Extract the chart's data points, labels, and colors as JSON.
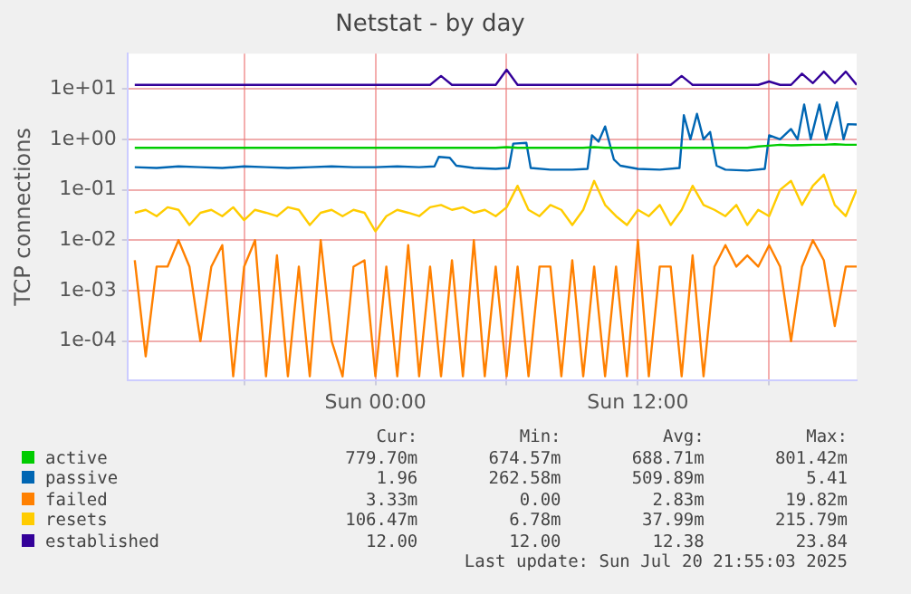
{
  "chart_data": {
    "type": "line",
    "title": "Netstat - by day",
    "ylabel": "TCP connections",
    "log": "y",
    "grid": true,
    "legend": "bottom",
    "x": [
      "2025-07-19T13:00",
      "2025-07-19T13:30",
      "2025-07-19T14:00",
      "2025-07-19T14:30",
      "2025-07-19T15:00",
      "2025-07-19T15:30",
      "2025-07-19T16:00",
      "2025-07-19T16:30",
      "2025-07-19T17:00",
      "2025-07-19T17:30",
      "2025-07-19T18:00",
      "2025-07-19T18:30",
      "2025-07-19T19:00",
      "2025-07-19T19:30",
      "2025-07-19T20:00",
      "2025-07-19T20:30",
      "2025-07-19T21:00",
      "2025-07-19T21:30",
      "2025-07-19T22:00",
      "2025-07-19T22:30",
      "2025-07-19T23:00",
      "2025-07-19T23:30",
      "2025-07-20T00:00",
      "2025-07-20T00:30",
      "2025-07-20T01:00",
      "2025-07-20T01:30",
      "2025-07-20T02:00",
      "2025-07-20T02:30",
      "2025-07-20T03:00",
      "2025-07-20T03:30",
      "2025-07-20T04:00",
      "2025-07-20T04:30",
      "2025-07-20T05:00",
      "2025-07-20T05:30",
      "2025-07-20T06:00",
      "2025-07-20T06:30",
      "2025-07-20T07:00",
      "2025-07-20T07:30",
      "2025-07-20T08:00",
      "2025-07-20T08:30",
      "2025-07-20T09:00",
      "2025-07-20T09:30",
      "2025-07-20T10:00",
      "2025-07-20T10:30",
      "2025-07-20T11:00",
      "2025-07-20T11:30",
      "2025-07-20T12:00",
      "2025-07-20T12:30",
      "2025-07-20T13:00",
      "2025-07-20T13:30",
      "2025-07-20T14:00",
      "2025-07-20T14:30",
      "2025-07-20T15:00",
      "2025-07-20T15:30",
      "2025-07-20T16:00",
      "2025-07-20T16:30",
      "2025-07-20T17:00",
      "2025-07-20T17:30",
      "2025-07-20T18:00",
      "2025-07-20T18:30",
      "2025-07-20T19:00",
      "2025-07-20T19:30",
      "2025-07-20T20:00",
      "2025-07-20T20:30",
      "2025-07-20T21:00",
      "2025-07-20T21:30",
      "2025-07-20T22:00"
    ],
    "xlim": [
      "2025-07-19T12:40",
      "2025-07-20T22:00"
    ],
    "xticks": [
      {
        "value": "2025-07-19T18:00",
        "label": null
      },
      {
        "value": "2025-07-20T00:00",
        "label": "Sun 00:00"
      },
      {
        "value": "2025-07-20T06:00",
        "label": null
      },
      {
        "value": "2025-07-20T12:00",
        "label": "Sun 12:00"
      },
      {
        "value": "2025-07-20T18:00",
        "label": null
      }
    ],
    "ylim": [
      1.7e-05,
      50
    ],
    "yticks": [
      {
        "value": 0.0001,
        "label": "1e-04"
      },
      {
        "value": 0.001,
        "label": "1e-03"
      },
      {
        "value": 0.01,
        "label": "1e-02"
      },
      {
        "value": 0.1,
        "label": "1e-01"
      },
      {
        "value": 1,
        "label": "1e+00"
      },
      {
        "value": 10,
        "label": "1e+01"
      }
    ],
    "series": [
      {
        "name": "active",
        "color": "#00cc00",
        "values": [
          0.68,
          0.68,
          0.68,
          0.68,
          0.68,
          0.68,
          0.68,
          0.68,
          0.68,
          0.68,
          0.68,
          0.68,
          0.68,
          0.68,
          0.68,
          0.68,
          0.68,
          0.68,
          0.68,
          0.68,
          0.68,
          0.68,
          0.68,
          0.68,
          0.68,
          0.68,
          0.68,
          0.68,
          0.68,
          0.68,
          0.68,
          0.68,
          0.68,
          0.68,
          0.7,
          0.68,
          0.68,
          0.68,
          0.68,
          0.68,
          0.68,
          0.68,
          0.7,
          0.68,
          0.68,
          0.68,
          0.68,
          0.68,
          0.68,
          0.68,
          0.68,
          0.68,
          0.68,
          0.68,
          0.68,
          0.68,
          0.68,
          0.72,
          0.75,
          0.78,
          0.76,
          0.77,
          0.78,
          0.78,
          0.8,
          0.78,
          0.78
        ]
      },
      {
        "name": "passive",
        "color": "#0066b3",
        "x": [
          "2025-07-19T13:00",
          "2025-07-19T14:00",
          "2025-07-19T15:00",
          "2025-07-19T16:00",
          "2025-07-19T17:00",
          "2025-07-19T18:00",
          "2025-07-19T19:00",
          "2025-07-19T20:00",
          "2025-07-19T21:00",
          "2025-07-19T22:00",
          "2025-07-19T23:00",
          "2025-07-20T00:00",
          "2025-07-20T01:00",
          "2025-07-20T02:00",
          "2025-07-20T02:42",
          "2025-07-20T02:54",
          "2025-07-20T03:24",
          "2025-07-20T03:42",
          "2025-07-20T04:30",
          "2025-07-20T05:30",
          "2025-07-20T06:06",
          "2025-07-20T06:18",
          "2025-07-20T06:54",
          "2025-07-20T07:06",
          "2025-07-20T08:00",
          "2025-07-20T09:00",
          "2025-07-20T09:42",
          "2025-07-20T09:54",
          "2025-07-20T10:12",
          "2025-07-20T10:30",
          "2025-07-20T10:54",
          "2025-07-20T11:12",
          "2025-07-20T12:00",
          "2025-07-20T13:00",
          "2025-07-20T13:54",
          "2025-07-20T14:06",
          "2025-07-20T14:24",
          "2025-07-20T14:42",
          "2025-07-20T15:00",
          "2025-07-20T15:18",
          "2025-07-20T15:36",
          "2025-07-20T16:00",
          "2025-07-20T17:00",
          "2025-07-20T17:48",
          "2025-07-20T18:00",
          "2025-07-20T18:30",
          "2025-07-20T19:00",
          "2025-07-20T19:18",
          "2025-07-20T19:36",
          "2025-07-20T19:54",
          "2025-07-20T20:18",
          "2025-07-20T20:36",
          "2025-07-20T21:06",
          "2025-07-20T21:24",
          "2025-07-20T21:36",
          "2025-07-20T22:00"
        ],
        "values": [
          0.28,
          0.27,
          0.29,
          0.28,
          0.27,
          0.29,
          0.28,
          0.27,
          0.28,
          0.29,
          0.28,
          0.28,
          0.29,
          0.28,
          0.29,
          0.45,
          0.43,
          0.3,
          0.27,
          0.26,
          0.27,
          0.82,
          0.85,
          0.27,
          0.25,
          0.25,
          0.26,
          1.2,
          0.9,
          1.8,
          0.4,
          0.3,
          0.26,
          0.25,
          0.27,
          3,
          1,
          3.2,
          1,
          1.4,
          0.3,
          0.25,
          0.24,
          0.26,
          1.2,
          1,
          1.6,
          1,
          4.9,
          1,
          4.9,
          1,
          5.4,
          1,
          2,
          1.96
        ]
      },
      {
        "name": "failed",
        "color": "#ff8000",
        "values": [
          0.004,
          5e-05,
          0.003,
          0.003,
          0.01,
          0.003,
          0.0001,
          0.003,
          0.008,
          2e-05,
          0.003,
          0.01,
          2e-05,
          0.005,
          2e-05,
          0.003,
          2e-05,
          0.01,
          0.0001,
          2e-05,
          0.003,
          0.004,
          2e-05,
          0.003,
          2e-05,
          0.008,
          2e-05,
          0.003,
          2e-05,
          0.004,
          2e-05,
          0.01,
          2e-05,
          0.003,
          2e-05,
          0.003,
          2e-05,
          0.003,
          0.003,
          2e-05,
          0.004,
          2e-05,
          0.003,
          2e-05,
          0.003,
          2e-05,
          0.01,
          2e-05,
          0.003,
          0.003,
          2e-05,
          0.005,
          2e-05,
          0.003,
          0.008,
          0.003,
          0.005,
          0.003,
          0.008,
          0.003,
          0.0001,
          0.003,
          0.01,
          0.004,
          0.0002,
          0.003,
          0.003
        ]
      },
      {
        "name": "resets",
        "color": "#ffcc00",
        "values": [
          0.035,
          0.04,
          0.03,
          0.045,
          0.04,
          0.02,
          0.035,
          0.04,
          0.03,
          0.045,
          0.025,
          0.04,
          0.035,
          0.03,
          0.045,
          0.04,
          0.02,
          0.035,
          0.04,
          0.03,
          0.04,
          0.035,
          0.015,
          0.03,
          0.04,
          0.035,
          0.03,
          0.045,
          0.05,
          0.04,
          0.045,
          0.035,
          0.04,
          0.03,
          0.045,
          0.12,
          0.04,
          0.03,
          0.05,
          0.04,
          0.02,
          0.04,
          0.15,
          0.05,
          0.03,
          0.02,
          0.04,
          0.03,
          0.05,
          0.02,
          0.04,
          0.12,
          0.05,
          0.04,
          0.03,
          0.05,
          0.02,
          0.04,
          0.03,
          0.1,
          0.15,
          0.05,
          0.12,
          0.2,
          0.05,
          0.03,
          0.1
        ]
      },
      {
        "name": "established",
        "color": "#330099",
        "values": [
          12,
          12,
          12,
          12,
          12,
          12,
          12,
          12,
          12,
          12,
          12,
          12,
          12,
          12,
          12,
          12,
          12,
          12,
          12,
          12,
          12,
          12,
          12,
          12,
          12,
          12,
          12,
          12,
          18,
          12,
          12,
          12,
          12,
          12,
          24,
          12,
          12,
          12,
          12,
          12,
          12,
          12,
          12,
          12,
          12,
          12,
          12,
          12,
          12,
          12,
          18,
          12,
          12,
          12,
          12,
          12,
          12,
          12,
          14,
          12,
          12,
          20,
          13,
          22,
          13,
          22,
          12
        ]
      }
    ],
    "annotations": [
      "Cur:",
      "Min:",
      "Avg:",
      "Max:",
      "779.70m",
      "674.57m",
      "688.71m",
      "801.42m",
      "1.96",
      "262.58m",
      "509.89m",
      "5.41",
      "3.33m",
      "0.00",
      "2.83m",
      "19.82m",
      "106.47m",
      "6.78m",
      "37.99m",
      "215.79m",
      "12.00",
      "12.00",
      "12.38",
      "23.84",
      "Last update: Sun Jul 20 21:55:03 2025"
    ]
  }
}
